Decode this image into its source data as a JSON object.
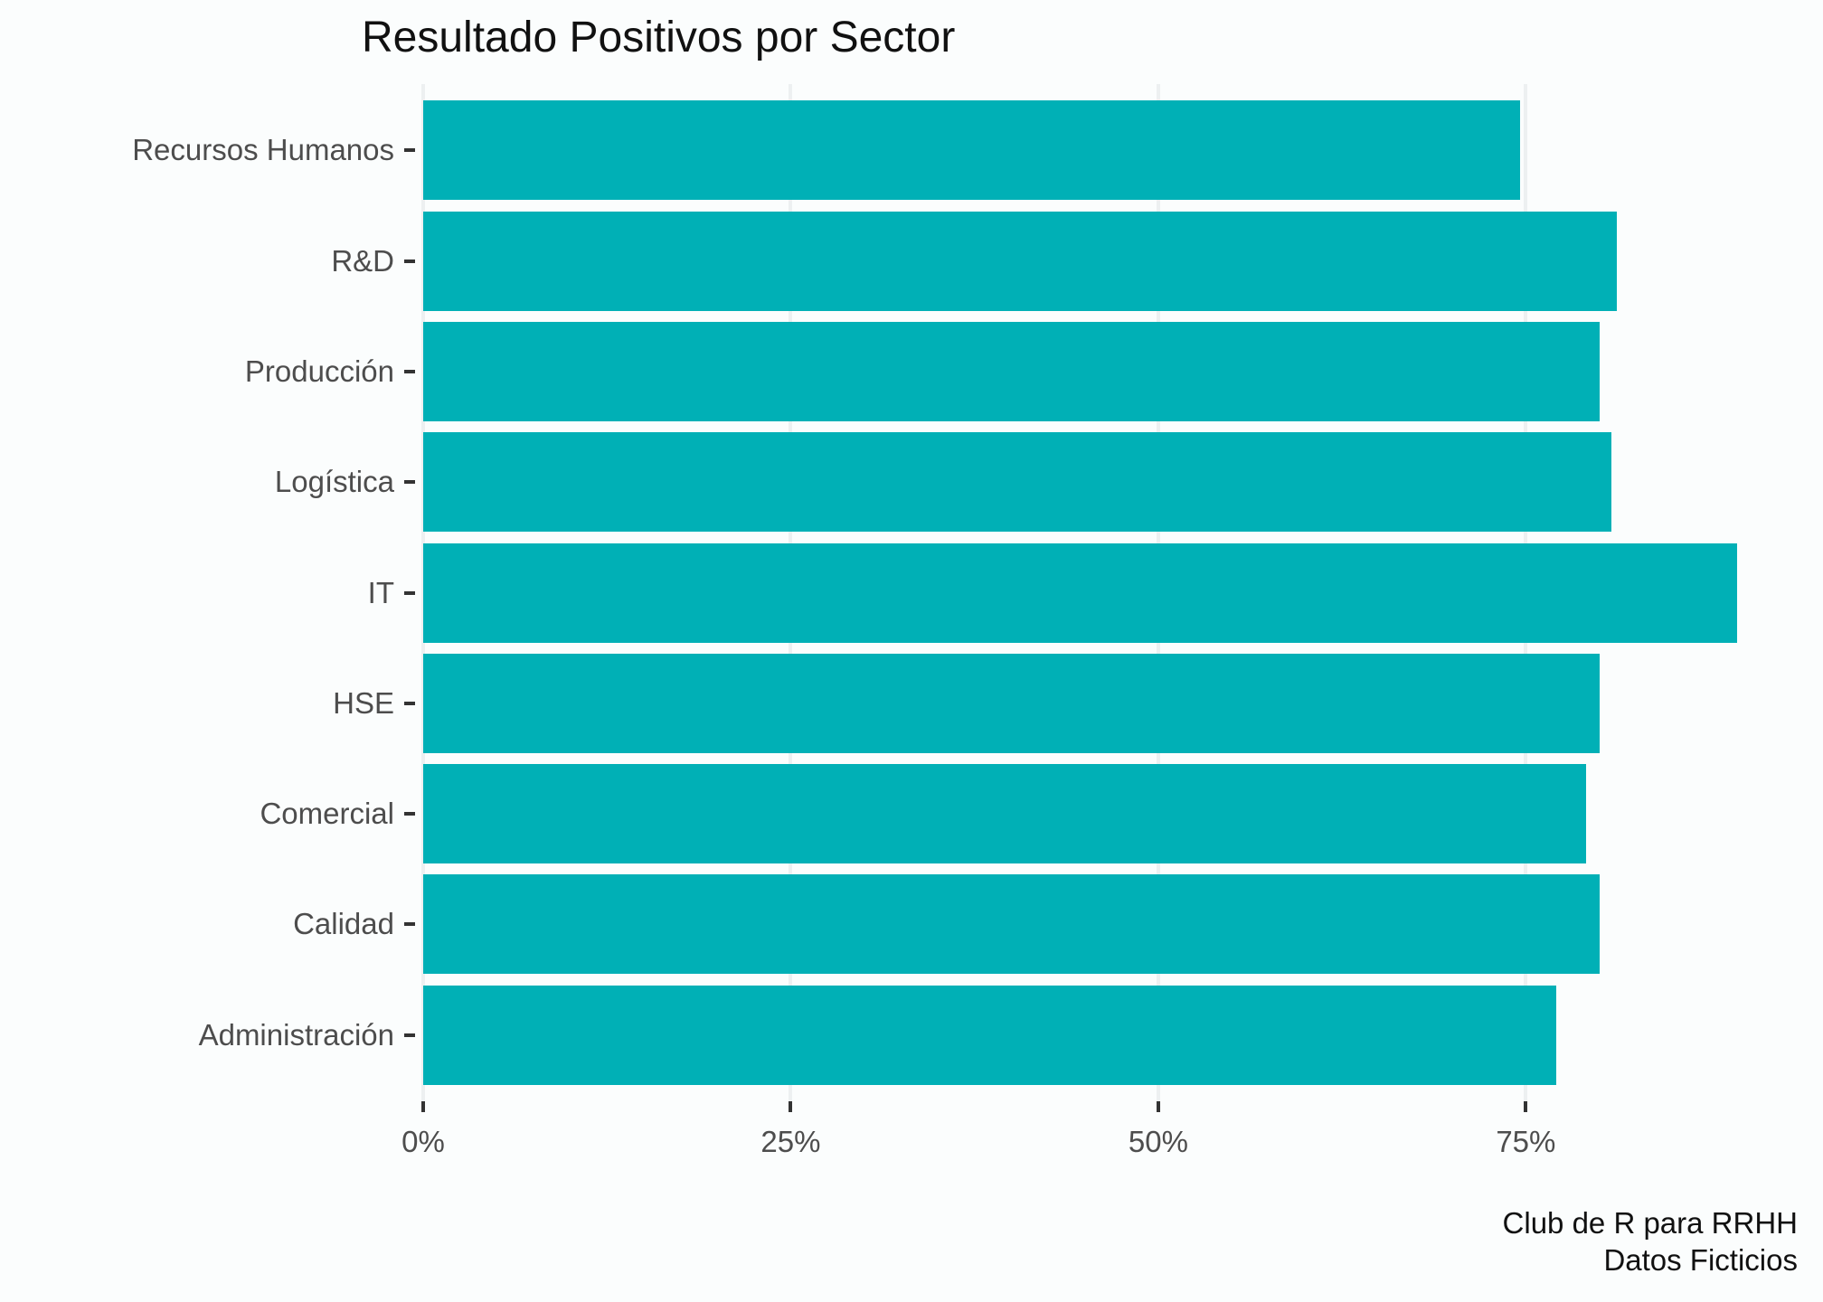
{
  "title": "Resultado Positivos por Sector",
  "caption": {
    "lines": [
      "Club de R para RRHH",
      "Datos Ficticios"
    ]
  },
  "colors": {
    "bar": "#00b0b6",
    "background": "#fbfdfd",
    "gridline": "#edf0f1",
    "axis_tick": "#333333",
    "axis_text": "#4d4d4d",
    "title_text": "#111111"
  },
  "chart_data": {
    "type": "bar",
    "orientation": "horizontal",
    "title": "Resultado Positivos por Sector",
    "caption": "Club de R para RRHH\nDatos Ficticios",
    "categories": [
      "Recursos Humanos",
      "R&D",
      "Producción",
      "Logística",
      "IT",
      "HSE",
      "Comercial",
      "Calidad",
      "Administración"
    ],
    "values": [
      74.6,
      81.2,
      80.0,
      80.8,
      89.4,
      80.0,
      79.1,
      80.0,
      77.1
    ],
    "value_unit": "%",
    "xlabel": "",
    "ylabel": "",
    "x_tick_labels": [
      "0%",
      "25%",
      "50%",
      "75%"
    ],
    "x_tick_values": [
      0,
      25,
      50,
      75
    ],
    "xlim": [
      0,
      93
    ],
    "grid": "major-x-only",
    "legend": "none",
    "bar_color": "#00b0b6"
  }
}
